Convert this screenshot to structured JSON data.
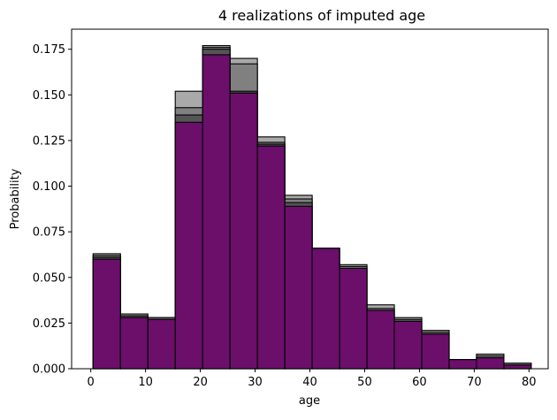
{
  "chart_data": {
    "type": "bar",
    "title": "4 realizations of imputed age",
    "xlabel": "age",
    "ylabel": "Probability",
    "xlim": [
      -3.5,
      83.5
    ],
    "ylim": [
      0,
      0.186
    ],
    "xticks": [
      0,
      10,
      20,
      30,
      40,
      50,
      60,
      70,
      80
    ],
    "xtick_labels": [
      "0",
      "10",
      "20",
      "30",
      "40",
      "50",
      "60",
      "70",
      "80"
    ],
    "yticks": [
      0,
      0.025,
      0.05,
      0.075,
      0.1,
      0.125,
      0.15,
      0.175
    ],
    "ytick_labels": [
      "0.000",
      "0.025",
      "0.050",
      "0.075",
      "0.100",
      "0.125",
      "0.150",
      "0.175"
    ],
    "bin_edges": [
      0.42,
      5.42,
      10.42,
      15.42,
      20.42,
      25.42,
      30.42,
      35.42,
      40.42,
      45.42,
      50.42,
      55.42,
      60.42,
      65.42,
      70.42,
      75.42,
      80.42
    ],
    "grid": false,
    "legend": "none",
    "series": [
      {
        "values": [
          0.063,
          0.03,
          0.028,
          0.152,
          0.177,
          0.17,
          0.127,
          0.095,
          0.066,
          0.057,
          0.035,
          0.028,
          0.021,
          0.005,
          0.008,
          0.003
        ],
        "color": "#a9a9a9"
      },
      {
        "values": [
          0.062,
          0.029,
          0.028,
          0.143,
          0.176,
          0.167,
          0.124,
          0.093,
          0.066,
          0.056,
          0.033,
          0.027,
          0.02,
          0.005,
          0.007,
          0.003
        ],
        "color": "#808080"
      },
      {
        "values": [
          0.061,
          0.029,
          0.027,
          0.139,
          0.175,
          0.152,
          0.123,
          0.091,
          0.065,
          0.055,
          0.032,
          0.026,
          0.019,
          0.005,
          0.006,
          0.002
        ],
        "color": "#555555"
      },
      {
        "values": [
          0.06,
          0.028,
          0.027,
          0.135,
          0.172,
          0.151,
          0.122,
          0.089,
          0.066,
          0.055,
          0.032,
          0.026,
          0.019,
          0.005,
          0.006,
          0.002
        ],
        "color": "#6e0a6e"
      }
    ]
  }
}
